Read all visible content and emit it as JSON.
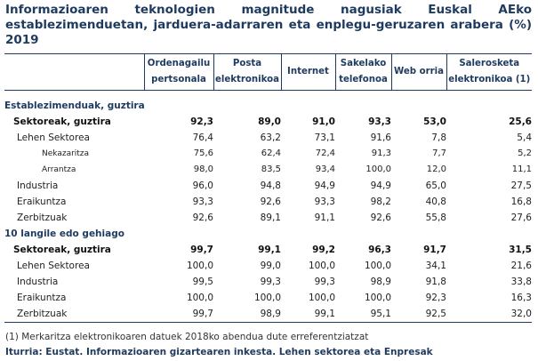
{
  "title": "Informazioaren teknologien magnitude nagusiak Euskal AEko establezimenduetan, jarduera-adarraren eta enplegu-geruzaren arabera (%) 2019",
  "columns": [
    "Ordenagailu pertsonala",
    "Posta elektronikoa",
    "Internet",
    "Sakelako telefonoa",
    "Web orria",
    "Salerosketa elektronikoa (1)"
  ],
  "sections": [
    {
      "label": "Establezimenduak, guztira",
      "rows": [
        {
          "label": "Sektoreak, guztira",
          "level": "total",
          "values": [
            "92,3",
            "89,0",
            "91,0",
            "93,3",
            "53,0",
            "25,6"
          ]
        },
        {
          "label": "Lehen Sektorea",
          "level": "l1",
          "values": [
            "76,4",
            "63,2",
            "73,1",
            "91,6",
            "7,8",
            "5,4"
          ]
        },
        {
          "label": "Nekazaritza",
          "level": "l2",
          "values": [
            "75,6",
            "62,4",
            "72,4",
            "91,3",
            "7,7",
            "5,2"
          ]
        },
        {
          "label": "Arrantza",
          "level": "l2",
          "values": [
            "98,0",
            "83,5",
            "93,4",
            "100,0",
            "12,0",
            "11,1"
          ]
        },
        {
          "label": "Industria",
          "level": "l1",
          "values": [
            "96,0",
            "94,8",
            "94,9",
            "94,9",
            "65,0",
            "27,5"
          ]
        },
        {
          "label": "Eraikuntza",
          "level": "l1",
          "values": [
            "93,3",
            "92,6",
            "93,3",
            "98,2",
            "40,8",
            "16,8"
          ]
        },
        {
          "label": "Zerbitzuak",
          "level": "l1",
          "values": [
            "92,6",
            "89,1",
            "91,1",
            "92,6",
            "55,8",
            "27,6"
          ]
        }
      ]
    },
    {
      "label": "10 langile edo gehiago",
      "rows": [
        {
          "label": "Sektoreak, guztira",
          "level": "total",
          "values": [
            "99,7",
            "99,1",
            "99,2",
            "96,3",
            "91,7",
            "31,5"
          ]
        },
        {
          "label": "Lehen Sektorea",
          "level": "l1",
          "values": [
            "100,0",
            "99,0",
            "100,0",
            "100,0",
            "34,1",
            "21,6"
          ]
        },
        {
          "label": "Industria",
          "level": "l1",
          "values": [
            "99,5",
            "99,3",
            "99,3",
            "98,9",
            "91,8",
            "33,8"
          ]
        },
        {
          "label": "Eraikuntza",
          "level": "l1",
          "values": [
            "100,0",
            "100,0",
            "100,0",
            "100,0",
            "92,3",
            "16,3"
          ]
        },
        {
          "label": "Zerbitzuak",
          "level": "l1",
          "values": [
            "99,7",
            "98,9",
            "99,1",
            "95,1",
            "92,5",
            "32,0"
          ]
        }
      ]
    }
  ],
  "footnote": "(1) Merkaritza elektronikoaren datuek 2018ko abendua dute erreferentziatzat",
  "source": "Iturria: Eustat. Informazioaren gizartearen inkesta. Lehen sektorea eta Enpresak"
}
